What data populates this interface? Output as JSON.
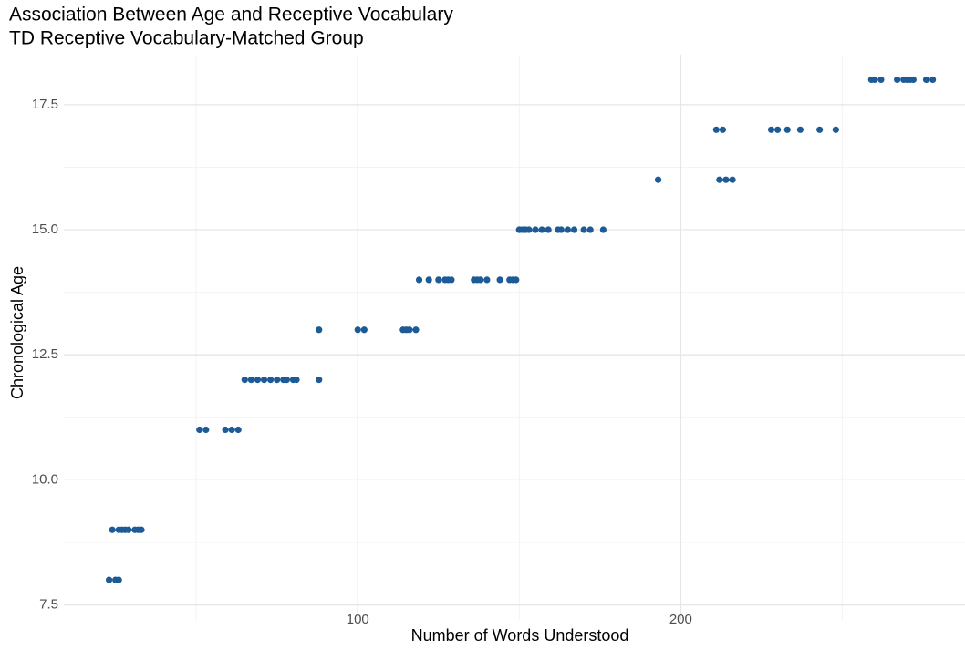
{
  "chart_data": {
    "type": "scatter",
    "title": "Association Between Age and Receptive Vocabulary",
    "subtitle": "TD Receptive Vocabulary-Matched Group",
    "x_label": "Number of Words Understood",
    "y_label": "Chronological Age",
    "color": "#1d5b96",
    "grid": true,
    "xlim": [
      9,
      288
    ],
    "ylim": [
      7.2,
      18.5
    ],
    "xticks": [
      100,
      200
    ],
    "yticks": [
      7.5,
      {
        "value": 10,
        "label": "10.0"
      },
      12.5,
      {
        "value": 15,
        "label": "15.0"
      },
      17.5
    ],
    "x": [
      23,
      25,
      26,
      24,
      26,
      27,
      28,
      29,
      31,
      32,
      33,
      51,
      53,
      59,
      61,
      63,
      65,
      67,
      69,
      71,
      73,
      75,
      77,
      78,
      80,
      81,
      88,
      88,
      100,
      102,
      114,
      115,
      116,
      118,
      119,
      122,
      125,
      127,
      128,
      129,
      136,
      137,
      138,
      140,
      144,
      147,
      148,
      149,
      150,
      150,
      151,
      152,
      153,
      155,
      157,
      159,
      162,
      163,
      165,
      167,
      170,
      172,
      176,
      193,
      212,
      214,
      216,
      211,
      213,
      228,
      230,
      233,
      237,
      243,
      248,
      259,
      260,
      262,
      267,
      269,
      270,
      271,
      272,
      276,
      278
    ],
    "y": [
      8,
      8,
      8,
      9,
      9,
      9,
      9,
      9,
      9,
      9,
      9,
      11,
      11,
      11,
      11,
      11,
      12,
      12,
      12,
      12,
      12,
      12,
      12,
      12,
      12,
      12,
      12,
      13,
      13,
      13,
      13,
      13,
      13,
      13,
      14,
      14,
      14,
      14,
      14,
      14,
      14,
      14,
      14,
      14,
      14,
      14,
      14,
      14,
      15,
      15,
      15,
      15,
      15,
      15,
      15,
      15,
      15,
      15,
      15,
      15,
      15,
      15,
      15,
      16,
      16,
      16,
      16,
      17,
      17,
      17,
      17,
      17,
      17,
      17,
      17,
      18,
      18,
      18,
      18,
      18,
      18,
      18,
      18,
      18,
      18
    ]
  }
}
